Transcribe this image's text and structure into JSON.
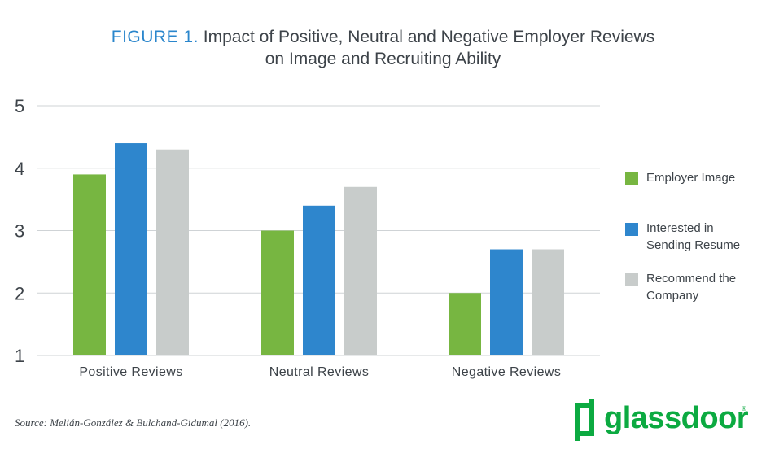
{
  "title": {
    "figure_label": "FIGURE 1.",
    "line1": "Impact of Positive, Neutral and Negative Employer Reviews",
    "line2": "on Image and Recruiting Ability"
  },
  "chart_data": {
    "type": "bar",
    "title": "Impact of Positive, Neutral and Negative Employer Reviews on Image and Recruiting Ability",
    "xlabel": "",
    "ylabel": "",
    "ylim": [
      1,
      5
    ],
    "yticks": [
      "1",
      "2",
      "3",
      "4",
      "5"
    ],
    "grid": true,
    "legend_position": "right",
    "categories": [
      "Positive Reviews",
      "Neutral Reviews",
      "Negative Reviews"
    ],
    "series": [
      {
        "name": "Employer Image",
        "values": [
          3.9,
          3.0,
          2.0
        ]
      },
      {
        "name": "Interested in Sending Resume",
        "values": [
          4.4,
          3.4,
          2.7
        ]
      },
      {
        "name": "Recommend the Company",
        "values": [
          4.3,
          3.7,
          2.7
        ]
      }
    ]
  },
  "legend": {
    "items": [
      {
        "line1": "Employer Image",
        "line2": ""
      },
      {
        "line1": "Interested in",
        "line2": "Sending Resume"
      },
      {
        "line1": "Recommend the",
        "line2": "Company"
      }
    ]
  },
  "colors": {
    "series": [
      "#77b641",
      "#2e86cd",
      "#c8cccb"
    ],
    "title_accent": "#2a86cc",
    "brand": "#0caa41",
    "grid": "#cfd3d6",
    "text": "#3d4349"
  },
  "source": "Source: Melián-González & Bulchand-Gidumal (2016).",
  "brand": {
    "name": "glassdoor",
    "icon": "glassdoor-door-icon"
  }
}
